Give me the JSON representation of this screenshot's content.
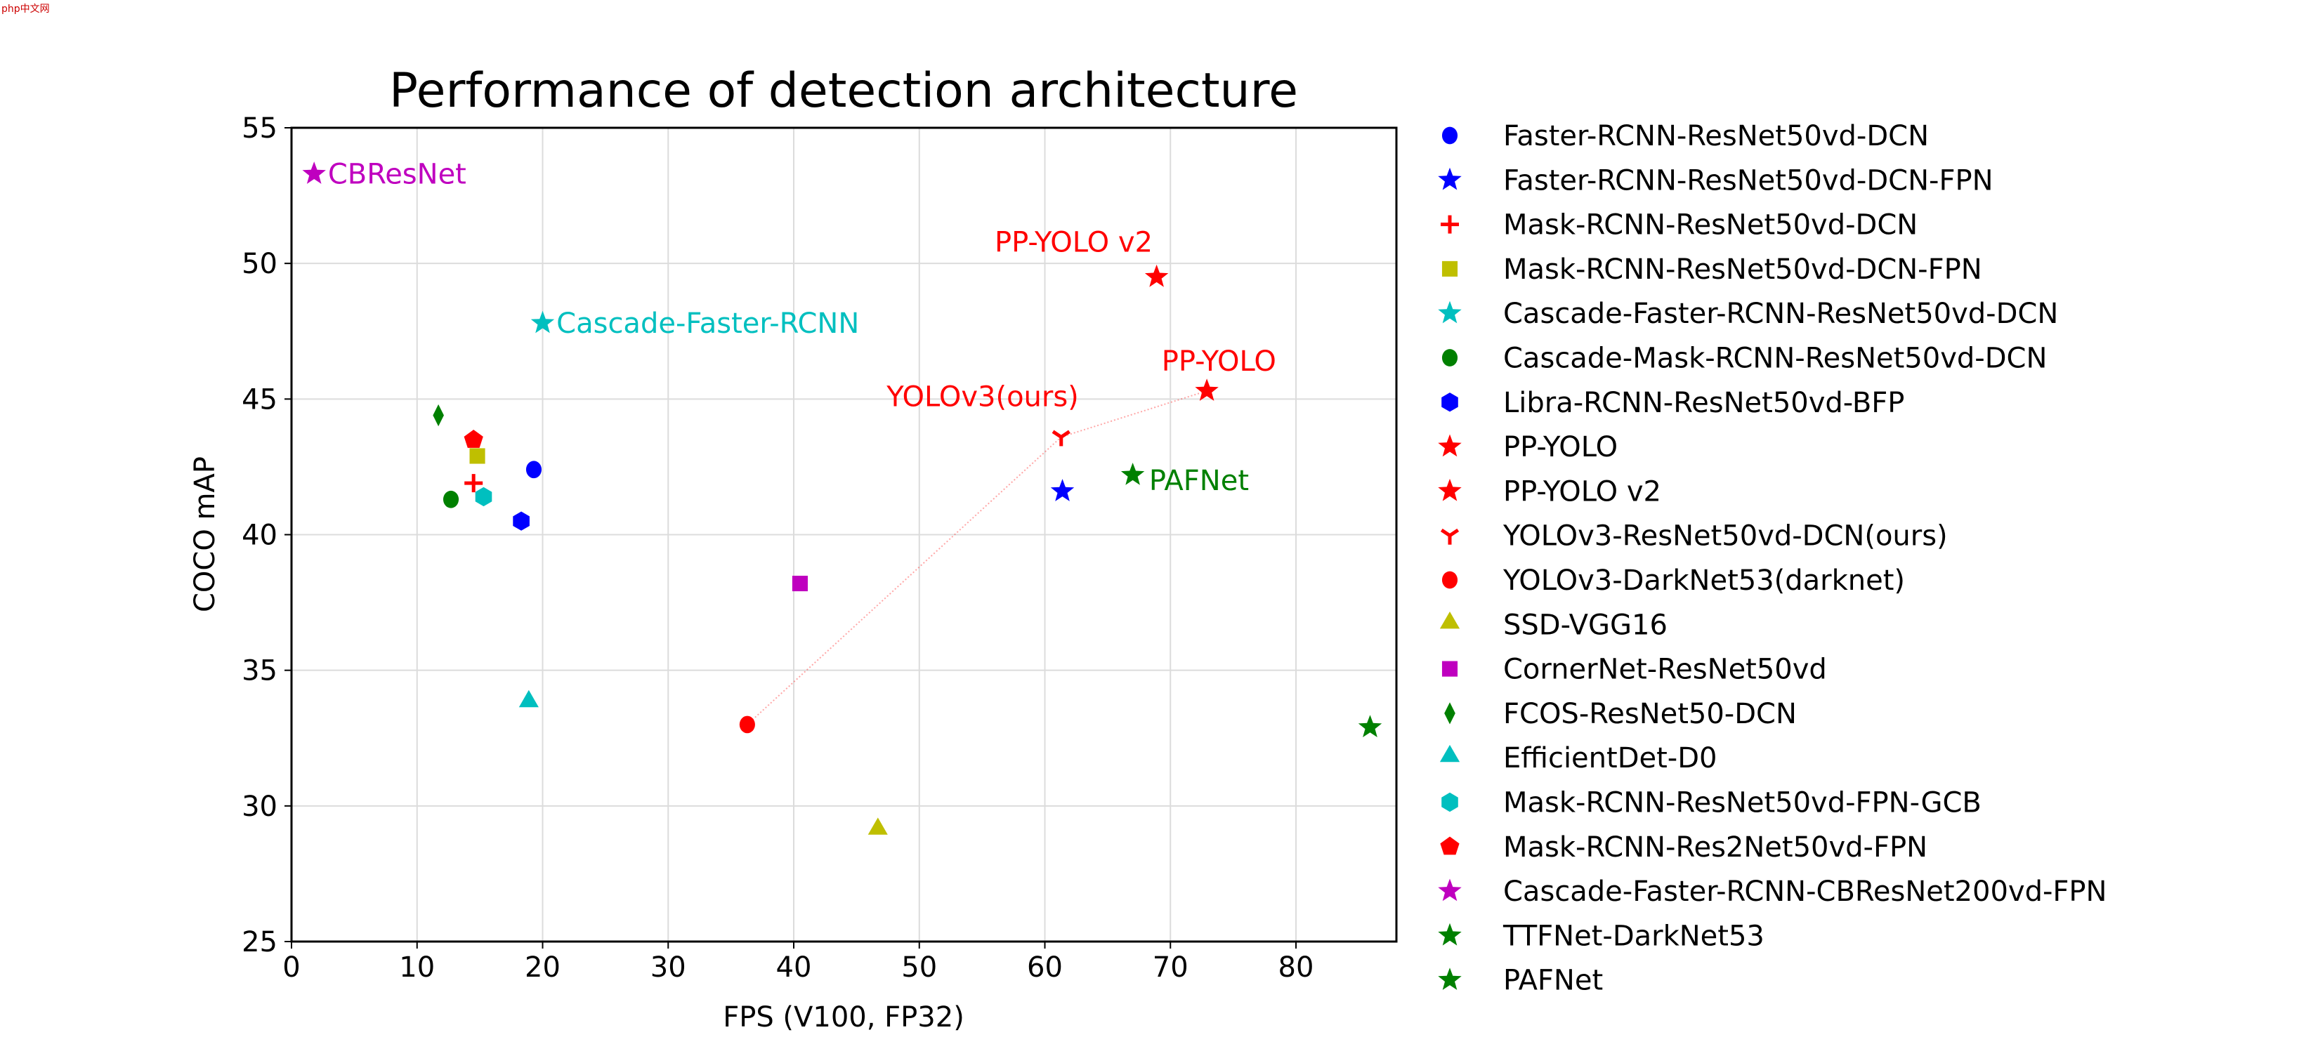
{
  "chart_data": {
    "type": "scatter",
    "title": "Performance of detection architecture",
    "xlabel": "FPS (V100, FP32)",
    "ylabel": "COCO mAP",
    "xlim": [
      0,
      88
    ],
    "ylim": [
      25,
      55
    ],
    "xticks": [
      0,
      10,
      20,
      30,
      40,
      50,
      60,
      70,
      80
    ],
    "yticks": [
      25,
      30,
      35,
      40,
      45,
      50,
      55
    ],
    "grid": true,
    "legend_placement": "outside-right",
    "series": [
      {
        "name": "Faster-RCNN-ResNet50vd-DCN",
        "x": 19.3,
        "y": 42.4,
        "marker": "circle",
        "color": "#0000ff"
      },
      {
        "name": "Faster-RCNN-ResNet50vd-DCN-FPN",
        "x": 61.4,
        "y": 41.6,
        "marker": "star",
        "color": "#0000ff"
      },
      {
        "name": "Mask-RCNN-ResNet50vd-DCN",
        "x": 14.5,
        "y": 41.9,
        "marker": "plus",
        "color": "#ff0000"
      },
      {
        "name": "Mask-RCNN-ResNet50vd-DCN-FPN",
        "x": 14.8,
        "y": 42.9,
        "marker": "square",
        "color": "#bfbf00"
      },
      {
        "name": "Cascade-Faster-RCNN-ResNet50vd-DCN",
        "x": 20.0,
        "y": 47.8,
        "marker": "star",
        "color": "#00bfbf"
      },
      {
        "name": "Cascade-Mask-RCNN-ResNet50vd-DCN",
        "x": 12.7,
        "y": 41.3,
        "marker": "circle",
        "color": "#008000"
      },
      {
        "name": "Libra-RCNN-ResNet50vd-BFP",
        "x": 18.3,
        "y": 40.5,
        "marker": "hexagon",
        "color": "#0000ff"
      },
      {
        "name": "PP-YOLO",
        "x": 72.9,
        "y": 45.3,
        "marker": "star",
        "color": "#ff0000"
      },
      {
        "name": "PP-YOLO v2",
        "x": 68.9,
        "y": 49.5,
        "marker": "star",
        "color": "#ff0000"
      },
      {
        "name": "YOLOv3-ResNet50vd-DCN(ours)",
        "x": 61.3,
        "y": 43.6,
        "marker": "tri_down",
        "color": "#ff0000"
      },
      {
        "name": "YOLOv3-DarkNet53(darknet)",
        "x": 36.3,
        "y": 33.0,
        "marker": "circle",
        "color": "#ff0000"
      },
      {
        "name": "SSD-VGG16",
        "x": 46.7,
        "y": 29.1,
        "marker": "triangle",
        "color": "#bfbf00"
      },
      {
        "name": "CornerNet-ResNet50vd",
        "x": 40.5,
        "y": 38.2,
        "marker": "square",
        "color": "#bf00bf"
      },
      {
        "name": "FCOS-ResNet50-DCN",
        "x": 11.7,
        "y": 44.4,
        "marker": "thin_diamond",
        "color": "#008000"
      },
      {
        "name": "EfficientDet-D0",
        "x": 18.9,
        "y": 33.8,
        "marker": "triangle",
        "color": "#00bfbf"
      },
      {
        "name": "Mask-RCNN-ResNet50vd-FPN-GCB",
        "x": 15.3,
        "y": 41.4,
        "marker": "hexagon",
        "color": "#00bfbf"
      },
      {
        "name": "Mask-RCNN-Res2Net50vd-FPN",
        "x": 14.5,
        "y": 43.5,
        "marker": "pentagon",
        "color": "#ff0000"
      },
      {
        "name": "Cascade-Faster-RCNN-CBResNet200vd-FPN",
        "x": 1.8,
        "y": 53.3,
        "marker": "star",
        "color": "#bf00bf"
      },
      {
        "name": "TTFNet-DarkNet53",
        "x": 85.9,
        "y": 32.9,
        "marker": "star",
        "color": "#008000"
      },
      {
        "name": "PAFNet",
        "x": 67.0,
        "y": 42.2,
        "marker": "star",
        "color": "#008000"
      }
    ],
    "connector_line": {
      "x": [
        36.3,
        61.3,
        72.9
      ],
      "y": [
        33.0,
        43.6,
        45.3
      ],
      "color": "#ff0000",
      "style": "dotted"
    },
    "annotations": [
      {
        "text": "CBResNet",
        "x": 2.9,
        "y": 53.3,
        "color": "#bf00bf"
      },
      {
        "text": "Cascade-Faster-RCNN",
        "x": 21.1,
        "y": 47.8,
        "color": "#00bfbf"
      },
      {
        "text": "PP-YOLO v2",
        "x": 56.0,
        "y": 50.8,
        "color": "#ff0000"
      },
      {
        "text": "PP-YOLO",
        "x": 69.3,
        "y": 46.4,
        "color": "#ff0000"
      },
      {
        "text": "YOLOv3(ours)",
        "x": 47.4,
        "y": 45.1,
        "color": "#ff0000"
      },
      {
        "text": "PAFNet",
        "x": 68.3,
        "y": 42.0,
        "color": "#008000"
      }
    ]
  },
  "watermark": "php中文网"
}
